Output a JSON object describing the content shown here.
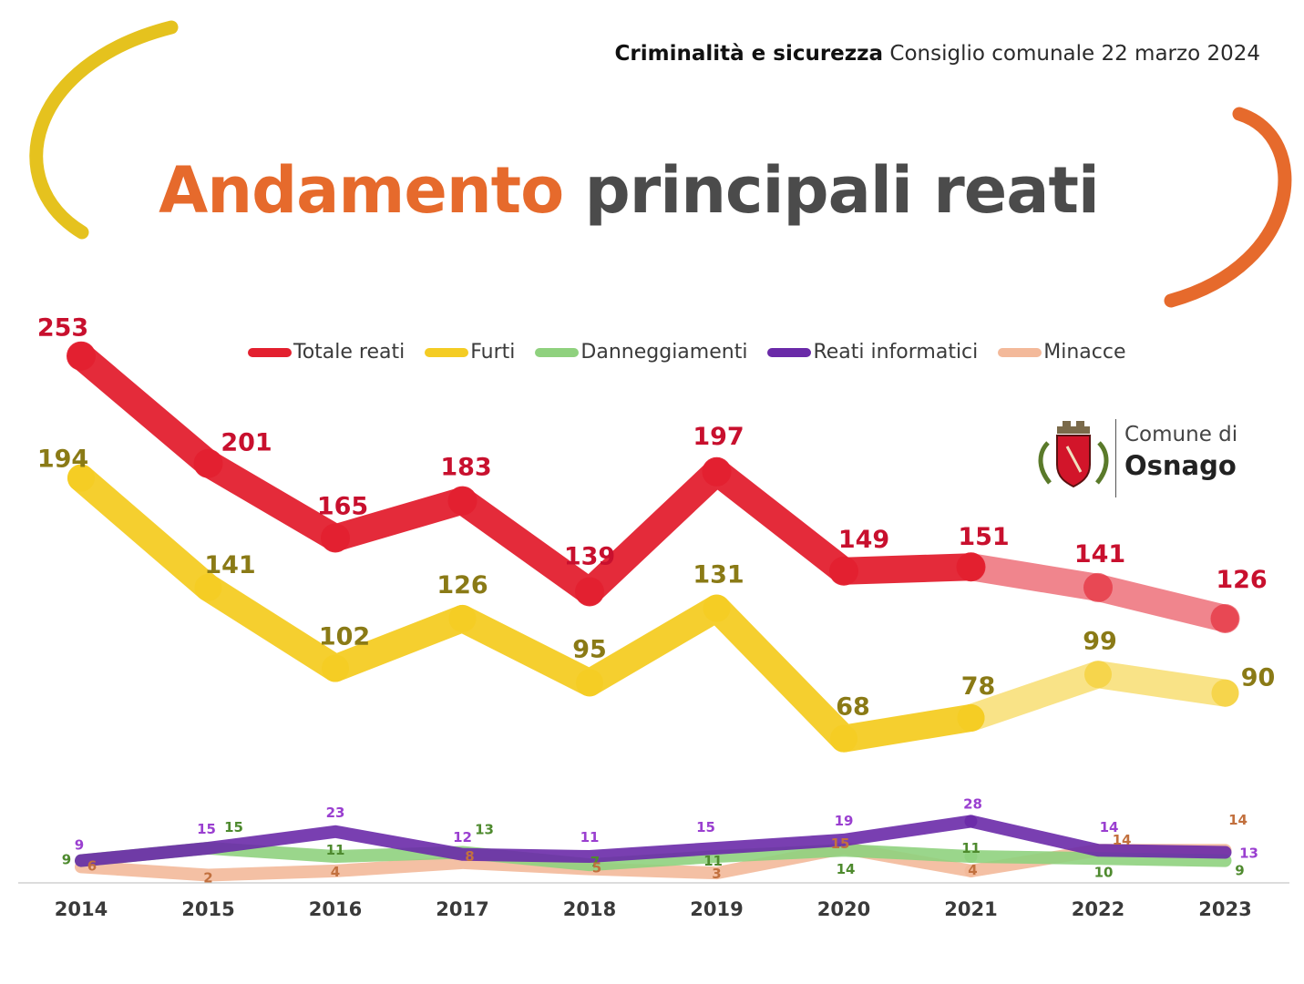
{
  "header": {
    "bold": "Criminalità e sicurezza",
    "rest": "Consiglio comunale 22 marzo 2024"
  },
  "title": {
    "word1": "Andamento",
    "word2": "principali reati"
  },
  "logo": {
    "line1": "Comune di",
    "line2": "Osnago"
  },
  "colors": {
    "accent_orange": "#e66a2c",
    "accent_yellow": "#e5c21e"
  },
  "chart_data": {
    "type": "line",
    "title": "Andamento principali reati",
    "xlabel": "",
    "ylabel": "",
    "categories": [
      "2014",
      "2015",
      "2016",
      "2017",
      "2018",
      "2019",
      "2020",
      "2021",
      "2022",
      "2023"
    ],
    "grid": false,
    "legend_position": "top",
    "series": [
      {
        "name": "Totale reati",
        "color": "#e3202f",
        "label_color": "#c8102e",
        "values": [
          253,
          201,
          165,
          183,
          139,
          197,
          149,
          151,
          141,
          126
        ]
      },
      {
        "name": "Furti",
        "color": "#f4cc24",
        "label_color": "#8a7a16",
        "values": [
          194,
          141,
          102,
          126,
          95,
          131,
          68,
          78,
          99,
          90
        ]
      },
      {
        "name": "Danneggiamenti",
        "color": "#8fd17e",
        "label_color": "#4e8a2e",
        "values": [
          9,
          15,
          11,
          13,
          7,
          11,
          14,
          11,
          10,
          9
        ]
      },
      {
        "name": "Reati informatici",
        "color": "#6a2aa8",
        "label_color": "#9a3fd0",
        "values": [
          9,
          15,
          23,
          12,
          11,
          15,
          19,
          28,
          14,
          13
        ]
      },
      {
        "name": "Minacce",
        "color": "#f3b99a",
        "label_color": "#c2703e",
        "values": [
          6,
          2,
          4,
          8,
          5,
          3,
          15,
          4,
          14,
          14
        ]
      }
    ]
  }
}
